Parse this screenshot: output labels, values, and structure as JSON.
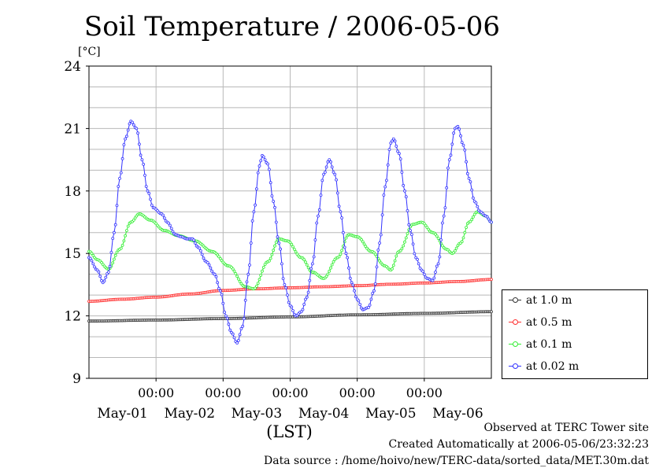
{
  "chart_data": {
    "type": "line",
    "title": "Soil Temperature / 2006-05-06",
    "y_unit_label": "[°C]",
    "xlabel": "(LST)",
    "ylim": [
      9,
      24
    ],
    "y_ticks": [
      9,
      12,
      15,
      18,
      21,
      24
    ],
    "x_range_hours": [
      0,
      144
    ],
    "x_time_labels": [
      {
        "hour": 24,
        "label": "00:00"
      },
      {
        "hour": 48,
        "label": "00:00"
      },
      {
        "hour": 72,
        "label": "00:00"
      },
      {
        "hour": 96,
        "label": "00:00"
      },
      {
        "hour": 120,
        "label": "00:00"
      }
    ],
    "x_date_labels": [
      {
        "hour": 12,
        "label": "May-01"
      },
      {
        "hour": 36,
        "label": "May-02"
      },
      {
        "hour": 60,
        "label": "May-03"
      },
      {
        "hour": 84,
        "label": "May-04"
      },
      {
        "hour": 108,
        "label": "May-05"
      },
      {
        "hour": 132,
        "label": "May-06"
      }
    ],
    "x_gridlines_hours": [
      24,
      48,
      72,
      96,
      120
    ],
    "grid": true,
    "legend_position": "right",
    "series": [
      {
        "name": "at 1.0 m",
        "color": "#333333",
        "points": [
          [
            0,
            11.75
          ],
          [
            24,
            11.8
          ],
          [
            48,
            11.87
          ],
          [
            72,
            11.95
          ],
          [
            96,
            12.05
          ],
          [
            120,
            12.12
          ],
          [
            144,
            12.2
          ]
        ]
      },
      {
        "name": "at 0.5 m",
        "color": "#ff3030",
        "points": [
          [
            0,
            12.7
          ],
          [
            12,
            12.8
          ],
          [
            24,
            12.9
          ],
          [
            36,
            13.05
          ],
          [
            48,
            13.22
          ],
          [
            60,
            13.3
          ],
          [
            72,
            13.35
          ],
          [
            84,
            13.4
          ],
          [
            96,
            13.45
          ],
          [
            108,
            13.52
          ],
          [
            120,
            13.58
          ],
          [
            132,
            13.65
          ],
          [
            144,
            13.75
          ]
        ]
      },
      {
        "name": "at 0.1 m",
        "color": "#33ee33",
        "points": [
          [
            0,
            15.1
          ],
          [
            3,
            14.7
          ],
          [
            7,
            14.25
          ],
          [
            11,
            15.2
          ],
          [
            15,
            16.5
          ],
          [
            18,
            16.9
          ],
          [
            22,
            16.6
          ],
          [
            27,
            16.1
          ],
          [
            32,
            15.85
          ],
          [
            38,
            15.6
          ],
          [
            44,
            15.1
          ],
          [
            50,
            14.4
          ],
          [
            56,
            13.4
          ],
          [
            59,
            13.3
          ],
          [
            64,
            14.6
          ],
          [
            68,
            15.7
          ],
          [
            71,
            15.6
          ],
          [
            76,
            14.8
          ],
          [
            80,
            14.1
          ],
          [
            84,
            13.8
          ],
          [
            89,
            14.8
          ],
          [
            93,
            15.9
          ],
          [
            96,
            15.8
          ],
          [
            101,
            15.1
          ],
          [
            106,
            14.4
          ],
          [
            108,
            14.2
          ],
          [
            111,
            15.1
          ],
          [
            116,
            16.4
          ],
          [
            119,
            16.5
          ],
          [
            123,
            16.0
          ],
          [
            128,
            15.2
          ],
          [
            130,
            15.0
          ],
          [
            133,
            15.5
          ],
          [
            136,
            16.5
          ],
          [
            139,
            17.0
          ],
          [
            142,
            16.8
          ],
          [
            144,
            16.5
          ]
        ]
      },
      {
        "name": "at 0.02 m",
        "color": "#3333ff",
        "points": [
          [
            0,
            14.8
          ],
          [
            3,
            14.2
          ],
          [
            5,
            13.6
          ],
          [
            7,
            14.1
          ],
          [
            9,
            16.0
          ],
          [
            11,
            18.6
          ],
          [
            13,
            20.5
          ],
          [
            15,
            21.35
          ],
          [
            17,
            21.0
          ],
          [
            19,
            19.5
          ],
          [
            21,
            18.0
          ],
          [
            23,
            17.2
          ],
          [
            26,
            16.9
          ],
          [
            28,
            16.5
          ],
          [
            31,
            15.9
          ],
          [
            33,
            15.8
          ],
          [
            35,
            15.7
          ],
          [
            37,
            15.7
          ],
          [
            39,
            15.3
          ],
          [
            42,
            14.6
          ],
          [
            45,
            14.0
          ],
          [
            47,
            13.2
          ],
          [
            49,
            12.0
          ],
          [
            51,
            11.2
          ],
          [
            53,
            10.7
          ],
          [
            55,
            11.5
          ],
          [
            57,
            14.0
          ],
          [
            59,
            17.0
          ],
          [
            61,
            19.2
          ],
          [
            62,
            19.7
          ],
          [
            64,
            19.3
          ],
          [
            66,
            17.5
          ],
          [
            68,
            15.5
          ],
          [
            70,
            13.5
          ],
          [
            72,
            12.5
          ],
          [
            74,
            12.0
          ],
          [
            76,
            12.2
          ],
          [
            78,
            12.9
          ],
          [
            80,
            14.5
          ],
          [
            82,
            16.8
          ],
          [
            84,
            18.8
          ],
          [
            86,
            19.5
          ],
          [
            88,
            18.8
          ],
          [
            90,
            17.0
          ],
          [
            92,
            15.0
          ],
          [
            94,
            13.6
          ],
          [
            96,
            12.8
          ],
          [
            98,
            12.3
          ],
          [
            100,
            12.4
          ],
          [
            102,
            13.2
          ],
          [
            104,
            15.5
          ],
          [
            106,
            18.2
          ],
          [
            108,
            20.3
          ],
          [
            109,
            20.5
          ],
          [
            111,
            19.8
          ],
          [
            113,
            18.0
          ],
          [
            115,
            16.1
          ],
          [
            117,
            14.8
          ],
          [
            119,
            14.2
          ],
          [
            121,
            13.8
          ],
          [
            123,
            13.7
          ],
          [
            125,
            14.5
          ],
          [
            127,
            16.8
          ],
          [
            129,
            19.5
          ],
          [
            131,
            21.0
          ],
          [
            132,
            21.1
          ],
          [
            134,
            20.2
          ],
          [
            136,
            18.6
          ],
          [
            138,
            17.5
          ],
          [
            140,
            17.0
          ],
          [
            142,
            16.8
          ],
          [
            144,
            16.5
          ]
        ]
      }
    ]
  },
  "legend": {
    "items": [
      {
        "label": "at 1.0 m",
        "color": "#333333"
      },
      {
        "label": "at 0.5 m",
        "color": "#ff3030"
      },
      {
        "label": "at 0.1 m",
        "color": "#33ee33"
      },
      {
        "label": "at 0.02 m",
        "color": "#3333ff"
      }
    ]
  },
  "footer": {
    "observed": "Observed at TERC Tower site",
    "created": "Created Automatically at 2006-05-06/23:32:23",
    "source": "Data source : /home/hoivo/new/TERC-data/sorted_data/MET.30m.dat"
  }
}
